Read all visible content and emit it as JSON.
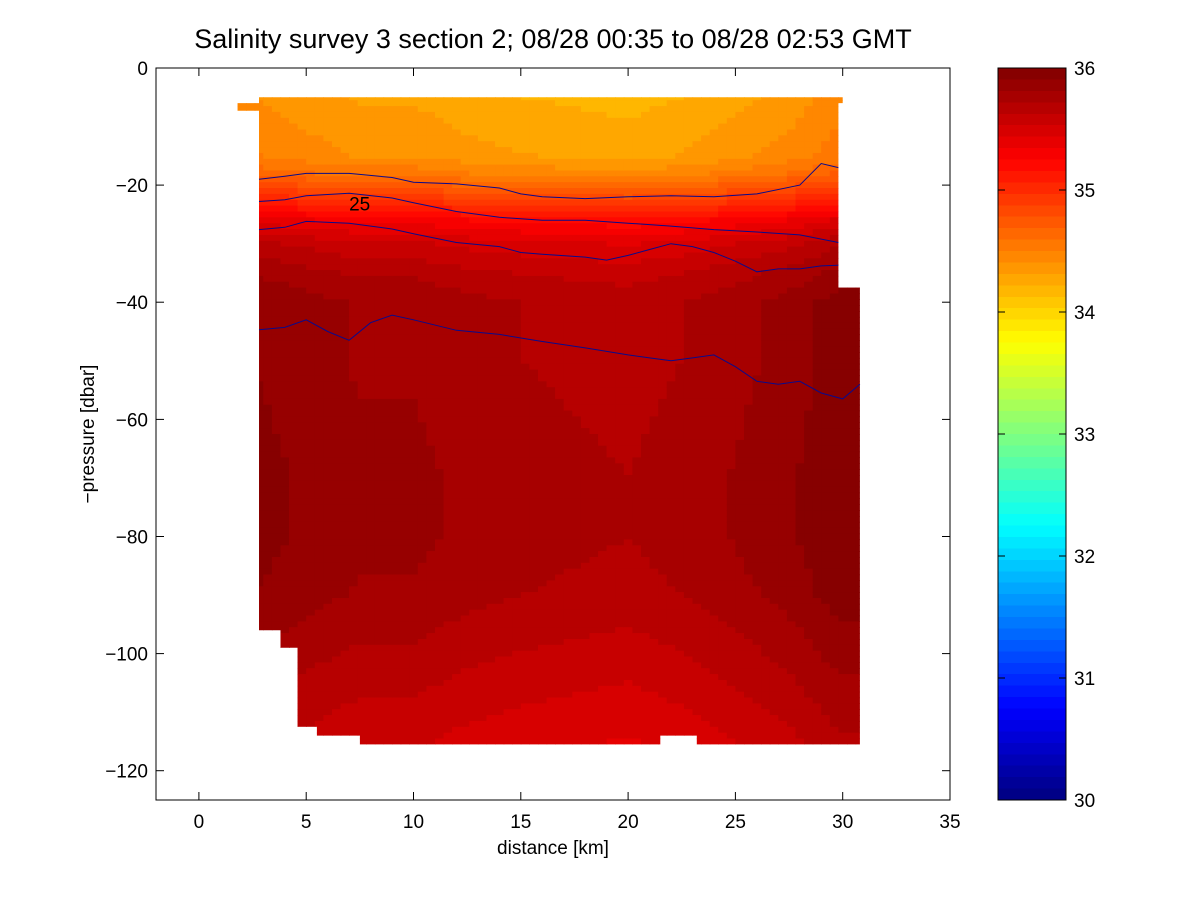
{
  "chart_data": {
    "type": "heatmap",
    "title": "Salinity survey 3 section 2; 08/28 00:35 to 08/28 02:53 GMT",
    "xlabel": "distance [km]",
    "ylabel": "−pressure [dbar]",
    "xlim": [
      -2,
      35
    ],
    "ylim": [
      -125,
      0
    ],
    "xticks": [
      0,
      5,
      10,
      15,
      20,
      25,
      30,
      35
    ],
    "xtick_labels": [
      "0",
      "5",
      "10",
      "15",
      "20",
      "25",
      "30",
      "35"
    ],
    "yticks": [
      0,
      -20,
      -40,
      -60,
      -80,
      -100,
      -120
    ],
    "ytick_labels": [
      "0",
      "−20",
      "−40",
      "−60",
      "−80",
      "−100",
      "−120"
    ],
    "colorbar": {
      "range": [
        30,
        36
      ],
      "ticks": [
        30,
        31,
        32,
        33,
        34,
        35,
        36
      ],
      "tick_labels": [
        "30",
        "31",
        "32",
        "33",
        "34",
        "35",
        "36"
      ],
      "colormap": "jet"
    },
    "grid": false,
    "salinity_field": {
      "x_km": [
        2.8,
        5,
        7.5,
        10,
        12.5,
        15,
        17.5,
        20,
        22.5,
        25,
        27.5,
        29.8
      ],
      "depths_dbar": [
        0,
        -5,
        -10,
        -15,
        -18,
        -22,
        -26,
        -30,
        -35,
        -40,
        -45,
        -50,
        -60,
        -70,
        -80,
        -90,
        -100,
        -110,
        -115
      ],
      "profile_psu": [
        34.3,
        34.3,
        34.35,
        34.4,
        34.55,
        34.9,
        35.3,
        35.55,
        35.7,
        35.8,
        35.8,
        35.8,
        35.82,
        35.84,
        35.84,
        35.8,
        35.7,
        35.6,
        35.55
      ],
      "column_offsets_psu": [
        0.1,
        0.05,
        0.0,
        0.0,
        -0.05,
        -0.08,
        -0.1,
        -0.12,
        -0.08,
        -0.02,
        0.05,
        0.15
      ]
    },
    "contours": [
      {
        "label": "",
        "x": [
          2.8,
          4,
          5,
          7,
          9,
          10,
          12,
          14,
          15,
          16,
          18,
          20,
          22,
          24,
          26,
          28,
          29,
          29.8
        ],
        "y": [
          -19,
          -18.5,
          -18,
          -18,
          -18.7,
          -19.5,
          -19.8,
          -20.5,
          -21.5,
          -22,
          -22.3,
          -22,
          -21.8,
          -22,
          -21.5,
          -20,
          -16.3,
          -17
        ]
      },
      {
        "label": "25",
        "x": [
          2.8,
          4,
          5,
          7,
          9,
          10,
          12,
          14,
          16,
          18,
          20,
          22,
          24,
          26,
          28,
          29.8
        ],
        "y": [
          -22.8,
          -22.5,
          -21.8,
          -21.4,
          -22.2,
          -23,
          -24.5,
          -25.5,
          -26,
          -26,
          -26.5,
          -27,
          -27.6,
          -28,
          -28.5,
          -29.8
        ]
      },
      {
        "label": "",
        "x": [
          2.8,
          4,
          5,
          7,
          9,
          10,
          12,
          14,
          15,
          16,
          18,
          19,
          20,
          21,
          22,
          23,
          24,
          25,
          26,
          27,
          28,
          29,
          29.8
        ],
        "y": [
          -27.6,
          -27.2,
          -26.2,
          -26.5,
          -27.5,
          -28.3,
          -29.8,
          -30.5,
          -31.5,
          -31.8,
          -32.3,
          -32.8,
          -32,
          -31,
          -30,
          -30.5,
          -31.5,
          -33,
          -34.8,
          -34.3,
          -34.3,
          -33.8,
          -33.7
        ]
      },
      {
        "label": "",
        "x": [
          2.8,
          4,
          5,
          6,
          7,
          8,
          9,
          10,
          12,
          14,
          16,
          18,
          20,
          21,
          22,
          23,
          24,
          25,
          26,
          27,
          28,
          29,
          30,
          30.8
        ],
        "y": [
          -44.7,
          -44.3,
          -43,
          -45,
          -46.5,
          -43.5,
          -42.2,
          -43,
          -44.8,
          -45.5,
          -46.7,
          -47.8,
          -49,
          -49.5,
          -50,
          -49.5,
          -49,
          -51,
          -53.5,
          -54,
          -53.5,
          -55.5,
          -56.5,
          -54
        ]
      }
    ],
    "annotations": [
      "25"
    ]
  }
}
